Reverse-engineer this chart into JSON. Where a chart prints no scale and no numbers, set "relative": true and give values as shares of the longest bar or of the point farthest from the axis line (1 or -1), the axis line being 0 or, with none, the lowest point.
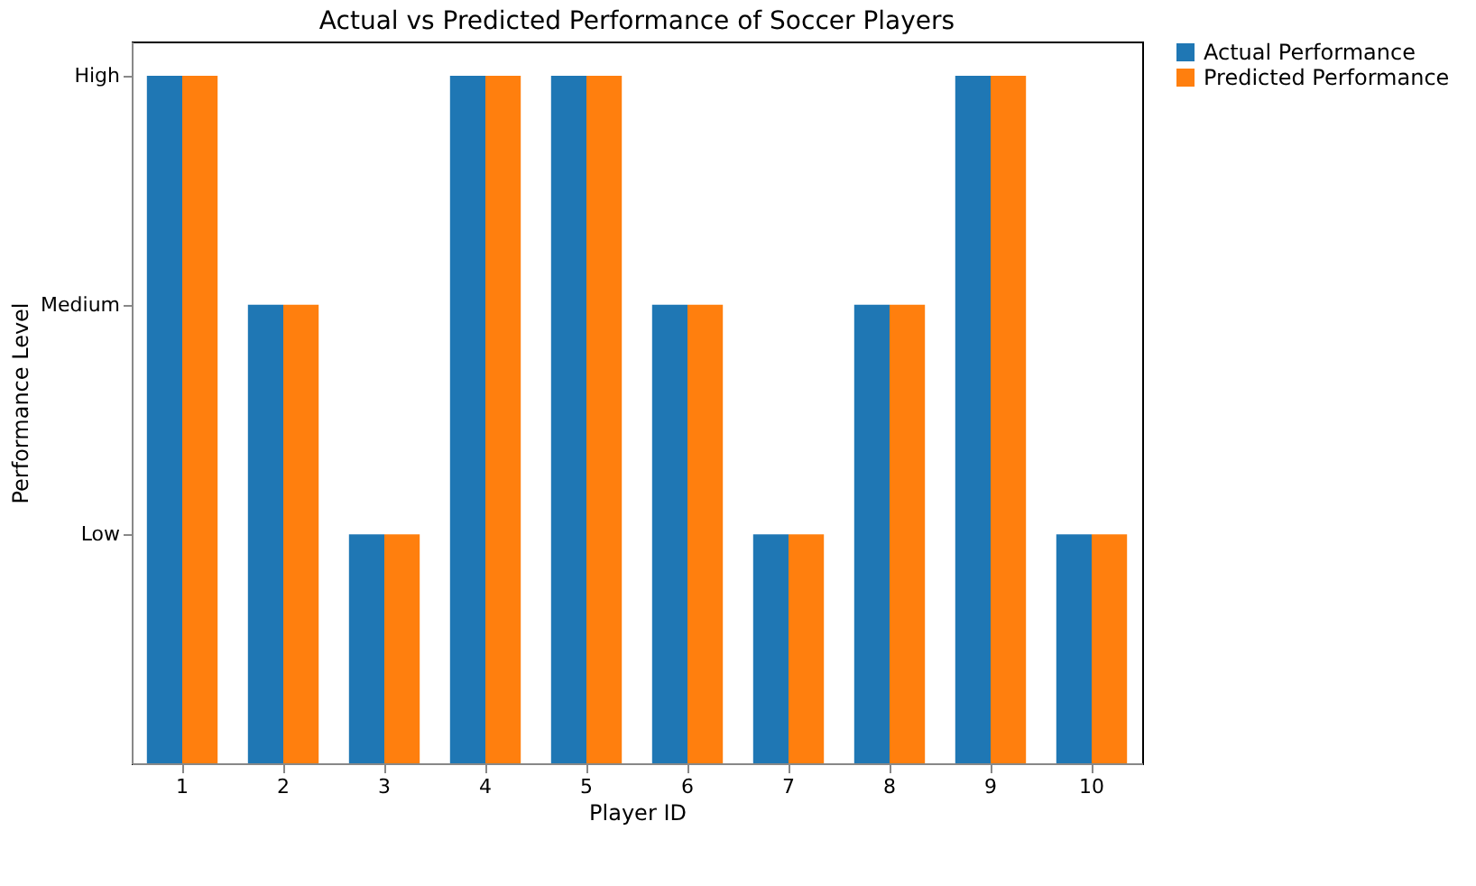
{
  "chart_data": {
    "type": "bar",
    "title": "Actual vs Predicted Performance of Soccer Players",
    "xlabel": "Player ID",
    "ylabel": "Performance Level",
    "categories": [
      "1",
      "2",
      "3",
      "4",
      "5",
      "6",
      "7",
      "8",
      "9",
      "10"
    ],
    "series": [
      {
        "name": "Actual Performance",
        "color": "#1f77b4",
        "values": [
          1,
          0.667,
          0.333,
          1,
          1,
          0.667,
          0.333,
          0.667,
          1,
          0.333
        ]
      },
      {
        "name": "Predicted Performance",
        "color": "#ff7f0e",
        "values": [
          1,
          0.667,
          0.333,
          1,
          1,
          0.667,
          0.333,
          0.667,
          1,
          0.333
        ]
      }
    ],
    "relative": true,
    "annotations": [
      "High",
      "Medium",
      "Low"
    ],
    "grid": false,
    "legend": "top right"
  }
}
